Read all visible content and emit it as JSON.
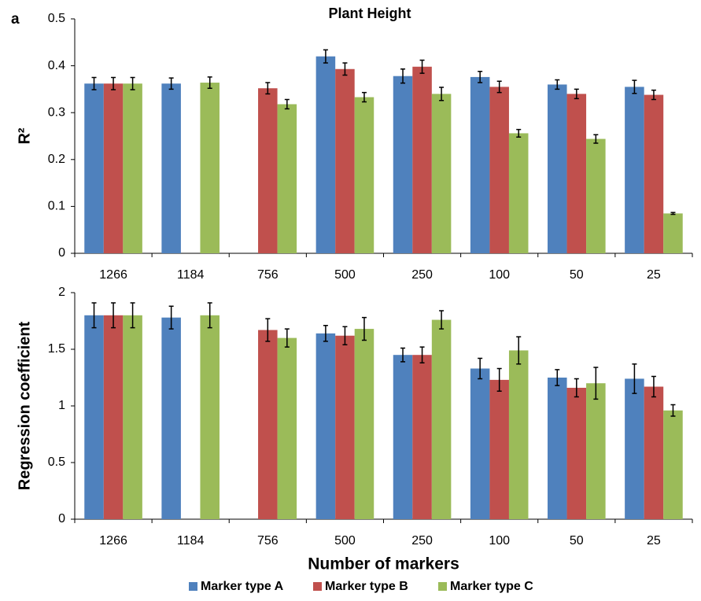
{
  "panel_label": "a",
  "chart_data": [
    {
      "type": "bar",
      "title": "Plant Height",
      "y_label": "R²",
      "categories": [
        "1266",
        "1184",
        "756",
        "500",
        "250",
        "100",
        "50",
        "25"
      ],
      "ylim": [
        0,
        0.5
      ],
      "yticks": [
        0,
        0.1,
        0.2,
        0.3,
        0.4,
        0.5
      ],
      "series": [
        {
          "color": "#4f81bd",
          "values": [
            0.362,
            0.362,
            null,
            0.42,
            0.378,
            0.376,
            0.36,
            0.355
          ],
          "errors": [
            0.013,
            0.012,
            null,
            0.014,
            0.015,
            0.012,
            0.01,
            0.014
          ]
        },
        {
          "color": "#c0504d",
          "values": [
            0.362,
            null,
            0.352,
            0.393,
            0.398,
            0.355,
            0.34,
            0.338
          ],
          "errors": [
            0.013,
            null,
            0.012,
            0.013,
            0.014,
            0.012,
            0.01,
            0.01
          ]
        },
        {
          "color": "#9bbb59",
          "values": [
            0.362,
            0.364,
            0.318,
            0.333,
            0.34,
            0.256,
            0.244,
            0.085
          ],
          "errors": [
            0.013,
            0.012,
            0.01,
            0.01,
            0.014,
            0.008,
            0.009,
            0.002
          ]
        }
      ]
    },
    {
      "type": "bar",
      "y_label": "Regression coefficient",
      "x_label": "Number of markers",
      "categories": [
        "1266",
        "1184",
        "756",
        "500",
        "250",
        "100",
        "50",
        "25"
      ],
      "ylim": [
        0,
        2
      ],
      "yticks": [
        0,
        0.5,
        1,
        1.5,
        2
      ],
      "legend": "bottom",
      "series": [
        {
          "name": "Marker type A",
          "color": "#4f81bd",
          "values": [
            1.8,
            1.78,
            null,
            1.64,
            1.45,
            1.33,
            1.25,
            1.24
          ],
          "errors": [
            0.11,
            0.1,
            null,
            0.07,
            0.06,
            0.09,
            0.07,
            0.13
          ]
        },
        {
          "name": "Marker type B",
          "color": "#c0504d",
          "values": [
            1.8,
            null,
            1.67,
            1.62,
            1.45,
            1.23,
            1.16,
            1.17
          ],
          "errors": [
            0.11,
            null,
            0.1,
            0.08,
            0.07,
            0.1,
            0.08,
            0.09
          ]
        },
        {
          "name": "Marker type C",
          "color": "#9bbb59",
          "values": [
            1.8,
            1.8,
            1.6,
            1.68,
            1.76,
            1.49,
            1.2,
            0.96
          ],
          "errors": [
            0.11,
            0.11,
            0.08,
            0.1,
            0.08,
            0.12,
            0.14,
            0.05
          ]
        }
      ]
    }
  ]
}
